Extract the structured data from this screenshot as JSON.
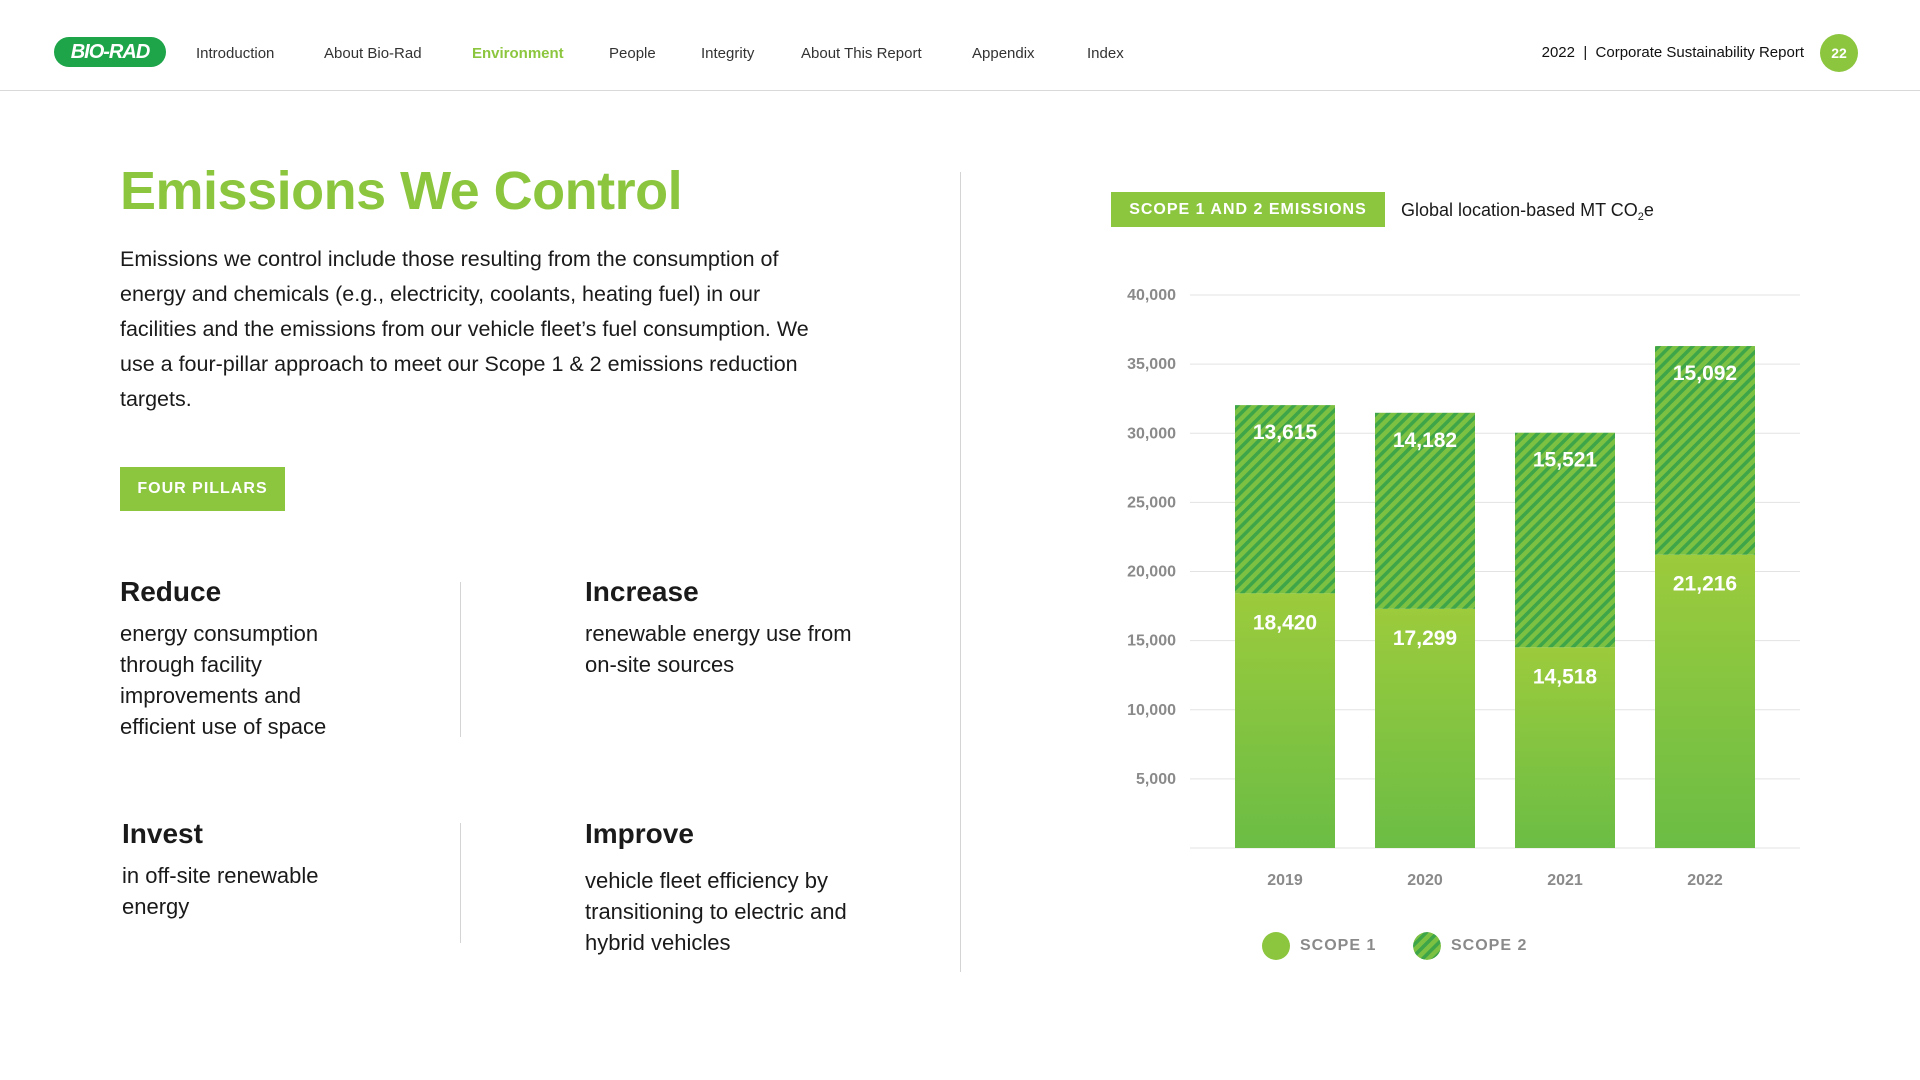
{
  "brand": {
    "logo_text": "BIO-RAD",
    "accent": "#8cc63f",
    "logo_color": "#1ea54a"
  },
  "nav": {
    "items": [
      "Introduction",
      "About Bio-Rad",
      "Environment",
      "People",
      "Integrity",
      "About This Report",
      "Appendix",
      "Index"
    ],
    "active": "Environment"
  },
  "header": {
    "report_label": "2022  |  Corporate Sustainability Report",
    "page_number": "22"
  },
  "main": {
    "title": "Emissions We Control",
    "intro": "Emissions we control include those resulting from the consumption of energy and chemicals (e.g., electricity, coolants, heating fuel) in our facilities and the emissions from our vehicle fleet’s fuel consumption. We use a four-pillar approach to meet our Scope 1 & 2 emissions reduction targets.",
    "pill_label": "FOUR PILLARS",
    "pillars": [
      {
        "title": "Reduce",
        "text": "energy consumption through facility improvements and efficient use of space"
      },
      {
        "title": "Increase",
        "text": "renewable energy use from on-site sources"
      },
      {
        "title": "Invest",
        "text": "in off-site renewable energy"
      },
      {
        "title": "Improve",
        "text": "vehicle fleet efficiency by transitioning to electric and hybrid vehicles"
      }
    ]
  },
  "chart_header": {
    "tag": "SCOPE 1 AND 2 EMISSIONS",
    "unit_main": "Global location-based MT CO",
    "unit_sub": "2",
    "unit_tail": "e"
  },
  "chart_data": {
    "type": "bar",
    "stacked": true,
    "categories": [
      "2019",
      "2020",
      "2021",
      "2022"
    ],
    "series": [
      {
        "name": "SCOPE 1",
        "values": [
          18420,
          17299,
          14518,
          21216
        ],
        "color": "#8cc63f",
        "fill": "solid"
      },
      {
        "name": "SCOPE 2",
        "values": [
          13615,
          14182,
          15521,
          15092
        ],
        "color": "#5db84a",
        "fill": "hatched"
      }
    ],
    "data_labels": [
      [
        "18,420",
        "17,299",
        "14,518",
        "21,216"
      ],
      [
        "13,615",
        "14,182",
        "15,521",
        "15,092"
      ]
    ],
    "yticks": [
      5000,
      10000,
      15000,
      20000,
      25000,
      30000,
      35000,
      40000
    ],
    "ytick_labels": [
      "5,000",
      "10,000",
      "15,000",
      "20,000",
      "25,000",
      "30,000",
      "35,000",
      "40,000"
    ],
    "ylim": [
      0,
      40000
    ],
    "grid": true,
    "legend_position": "bottom"
  }
}
